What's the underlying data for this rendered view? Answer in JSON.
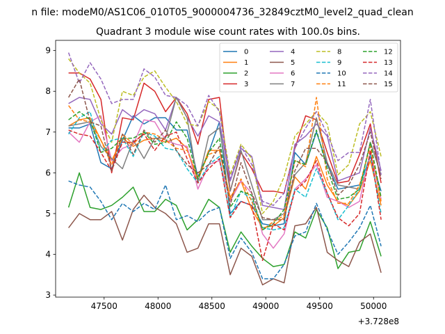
{
  "figure": {
    "suptitle": "n file: modeM0/AS1C06_010T05_9000004736_32849cztM0_level2_quad_clean",
    "title": "Quadrant 3 module wise count rates with 100.0s bins.",
    "x_offset_label": "+3.728e8"
  },
  "chart_data": {
    "type": "line",
    "title": "Quadrant 3 module wise count rates with 100.0s bins.",
    "xlabel": "",
    "ylabel": "",
    "x_offset": 372800000,
    "xlim": [
      47050,
      50250
    ],
    "ylim": [
      2.95,
      9.25
    ],
    "xticks": [
      47500,
      48000,
      48500,
      49000,
      49500,
      50000
    ],
    "xtick_labels": [
      "47500",
      "48000",
      "48500",
      "49000",
      "49500",
      "50000"
    ],
    "yticks": [
      3,
      4,
      5,
      6,
      7,
      8,
      9
    ],
    "ytick_labels": [
      "3",
      "4",
      "5",
      "6",
      "7",
      "8",
      "9"
    ],
    "grid": false,
    "legend_position": "upper right",
    "legend_ncol": 4,
    "x": [
      47170,
      47270,
      47370,
      47470,
      47570,
      47670,
      47770,
      47870,
      47970,
      48070,
      48170,
      48270,
      48370,
      48470,
      48570,
      48670,
      48770,
      48870,
      48970,
      49070,
      49170,
      49270,
      49370,
      49470,
      49570,
      49670,
      49770,
      49870,
      49970,
      50070
    ],
    "series": [
      {
        "name": "0",
        "color": "#1f77b4",
        "style": "solid",
        "values": [
          7.1,
          7.1,
          7.2,
          6.25,
          6.1,
          6.8,
          7.4,
          7.2,
          7.35,
          7.35,
          7.05,
          7.05,
          5.9,
          6.5,
          7.25,
          5.0,
          5.3,
          5.2,
          4.75,
          4.7,
          4.75,
          6.5,
          6.2,
          7.0,
          6.2,
          5.6,
          5.65,
          5.7,
          6.4,
          5.55
        ]
      },
      {
        "name": "1",
        "color": "#ff7f0e",
        "style": "solid",
        "values": [
          7.15,
          7.3,
          7.35,
          6.8,
          6.3,
          6.85,
          6.65,
          6.8,
          6.85,
          6.75,
          6.85,
          6.6,
          5.8,
          6.55,
          6.55,
          5.4,
          5.8,
          5.1,
          4.65,
          4.7,
          4.9,
          5.9,
          5.6,
          6.4,
          5.7,
          5.3,
          5.2,
          5.55,
          6.3,
          5.2
        ]
      },
      {
        "name": "2",
        "color": "#2ca02c",
        "style": "solid",
        "values": [
          5.15,
          6.0,
          5.15,
          5.1,
          5.2,
          5.4,
          5.65,
          5.05,
          5.05,
          5.35,
          5.2,
          4.6,
          4.85,
          5.35,
          5.15,
          4.05,
          4.55,
          4.2,
          3.9,
          3.7,
          3.75,
          4.55,
          4.4,
          5.1,
          4.65,
          3.65,
          4.05,
          4.1,
          4.8,
          3.95
        ]
      },
      {
        "name": "3",
        "color": "#d62728",
        "style": "solid",
        "values": [
          8.45,
          8.45,
          8.3,
          7.8,
          6.0,
          7.35,
          7.3,
          8.2,
          8.0,
          7.5,
          7.85,
          7.45,
          6.7,
          7.8,
          7.85,
          5.55,
          6.5,
          6.1,
          5.55,
          5.55,
          5.5,
          6.6,
          7.4,
          7.3,
          6.5,
          5.75,
          5.8,
          6.45,
          7.2,
          5.75
        ]
      },
      {
        "name": "4",
        "color": "#9467bd",
        "style": "solid",
        "values": [
          7.7,
          7.85,
          7.8,
          7.2,
          6.95,
          7.55,
          7.35,
          7.55,
          7.45,
          7.05,
          7.85,
          7.35,
          6.9,
          7.4,
          7.25,
          5.8,
          6.6,
          6.4,
          5.2,
          5.15,
          5.1,
          6.7,
          6.9,
          7.2,
          6.9,
          5.8,
          5.9,
          6.0,
          7.1,
          6.05
        ]
      },
      {
        "name": "5",
        "color": "#8c564b",
        "style": "solid",
        "values": [
          4.65,
          5.0,
          4.85,
          4.85,
          5.05,
          4.35,
          5.1,
          5.45,
          5.15,
          5.0,
          4.75,
          4.05,
          4.15,
          4.75,
          4.75,
          3.5,
          4.15,
          3.95,
          3.25,
          3.4,
          3.3,
          4.7,
          4.75,
          5.15,
          4.05,
          3.85,
          3.7,
          4.3,
          4.5,
          3.55
        ]
      },
      {
        "name": "6",
        "color": "#e377c2",
        "style": "solid",
        "values": [
          7.0,
          6.75,
          7.25,
          7.4,
          6.3,
          6.6,
          6.7,
          7.3,
          7.25,
          6.8,
          6.7,
          6.65,
          5.6,
          6.2,
          6.3,
          5.3,
          5.8,
          5.5,
          4.5,
          4.15,
          4.5,
          5.6,
          5.85,
          6.2,
          5.4,
          5.3,
          5.15,
          5.3,
          6.5,
          5.35
        ]
      },
      {
        "name": "7",
        "color": "#7f7f7f",
        "style": "solid",
        "values": [
          7.15,
          7.2,
          7.25,
          6.65,
          6.35,
          6.1,
          6.8,
          6.35,
          6.85,
          6.85,
          7.85,
          7.35,
          5.75,
          6.9,
          7.1,
          5.55,
          6.55,
          5.7,
          4.85,
          4.85,
          5.0,
          5.95,
          6.25,
          7.35,
          6.25,
          5.7,
          5.65,
          5.6,
          6.75,
          5.95
        ]
      },
      {
        "name": "8",
        "color": "#bcbd22",
        "style": "dashed",
        "values": [
          8.8,
          8.45,
          8.2,
          7.3,
          6.75,
          8.0,
          7.9,
          8.35,
          8.5,
          8.1,
          7.75,
          7.2,
          7.15,
          7.75,
          7.55,
          5.95,
          6.7,
          6.35,
          5.0,
          5.3,
          5.9,
          6.9,
          7.2,
          7.5,
          7.2,
          5.95,
          6.2,
          7.2,
          7.5,
          6.4
        ]
      },
      {
        "name": "9",
        "color": "#17becf",
        "style": "dashed",
        "values": [
          6.95,
          7.35,
          7.5,
          6.5,
          6.8,
          6.85,
          6.4,
          7.0,
          6.9,
          6.6,
          6.55,
          6.1,
          5.75,
          6.2,
          6.4,
          4.9,
          5.55,
          5.35,
          4.65,
          4.6,
          4.65,
          5.6,
          5.4,
          6.1,
          5.5,
          4.85,
          5.2,
          5.6,
          6.45,
          5.0
        ]
      },
      {
        "name": "10",
        "color": "#1f77b4",
        "style": "dashed",
        "values": [
          5.8,
          5.7,
          5.65,
          5.3,
          4.85,
          5.25,
          5.05,
          5.25,
          5.1,
          5.7,
          4.85,
          4.95,
          4.8,
          5.05,
          5.15,
          3.9,
          4.4,
          4.05,
          3.4,
          3.4,
          3.75,
          4.45,
          4.55,
          5.25,
          4.6,
          4.0,
          4.3,
          4.65,
          5.2,
          4.2
        ]
      },
      {
        "name": "11",
        "color": "#ff7f0e",
        "style": "dashed",
        "values": [
          7.65,
          7.3,
          7.25,
          6.8,
          6.2,
          6.95,
          6.7,
          7.0,
          6.95,
          6.8,
          6.6,
          6.55,
          5.9,
          6.45,
          6.55,
          5.35,
          5.85,
          5.3,
          4.6,
          4.8,
          4.95,
          6.3,
          6.15,
          7.85,
          5.85,
          5.25,
          5.25,
          5.7,
          6.65,
          5.3
        ]
      },
      {
        "name": "12",
        "color": "#2ca02c",
        "style": "dashed",
        "values": [
          7.3,
          7.5,
          7.3,
          6.5,
          6.6,
          6.85,
          6.85,
          7.0,
          6.7,
          6.75,
          7.25,
          6.85,
          5.85,
          6.5,
          6.85,
          5.15,
          5.55,
          5.45,
          4.6,
          4.75,
          5.1,
          6.3,
          6.2,
          7.05,
          6.1,
          5.35,
          5.4,
          5.6,
          6.75,
          5.4
        ]
      },
      {
        "name": "13",
        "color": "#d62728",
        "style": "dashed",
        "values": [
          7.05,
          6.95,
          6.9,
          6.5,
          6.05,
          6.75,
          6.75,
          6.95,
          6.55,
          6.9,
          7.0,
          6.35,
          5.75,
          6.1,
          6.35,
          4.9,
          5.3,
          5.2,
          3.85,
          4.75,
          4.6,
          5.55,
          5.8,
          6.3,
          5.5,
          4.9,
          4.7,
          5.0,
          6.55,
          4.85
        ]
      },
      {
        "name": "14",
        "color": "#9467bd",
        "style": "dashed",
        "values": [
          8.95,
          8.2,
          8.7,
          8.3,
          7.7,
          7.8,
          7.8,
          8.55,
          8.35,
          7.9,
          7.85,
          7.65,
          7.15,
          7.9,
          7.5,
          5.85,
          6.65,
          6.2,
          5.3,
          5.2,
          5.5,
          6.6,
          7.1,
          7.5,
          6.95,
          6.3,
          6.5,
          6.5,
          7.8,
          5.95
        ]
      },
      {
        "name": "15",
        "color": "#8c564b",
        "style": "dashed",
        "values": [
          7.85,
          8.3,
          7.25,
          7.15,
          6.05,
          6.95,
          6.45,
          7.05,
          6.75,
          7.05,
          6.55,
          6.2,
          6.0,
          6.2,
          6.65,
          5.2,
          6.25,
          5.5,
          4.9,
          4.85,
          4.85,
          6.05,
          6.6,
          6.6,
          6.25,
          5.45,
          5.7,
          6.2,
          7.0,
          5.85
        ]
      }
    ]
  }
}
